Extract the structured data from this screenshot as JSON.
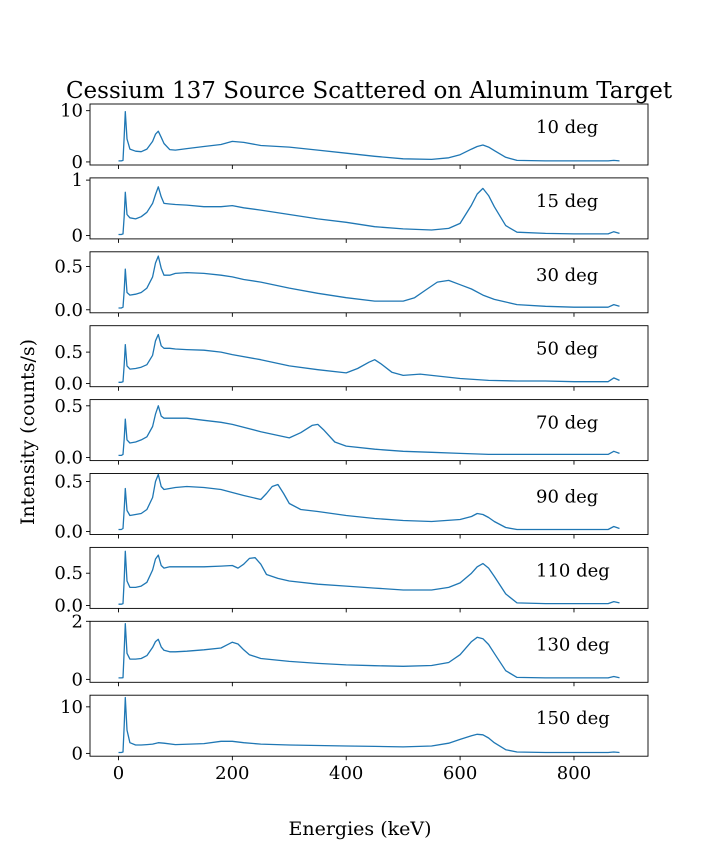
{
  "figure": {
    "title": "Cessium 137 Source Scattered on Aluminum Target",
    "xlabel": "Energies (keV)",
    "ylabel": "Intensity (counts/s)"
  },
  "colors": {
    "line": "#1f77b4",
    "axes": "#000000",
    "background": "#ffffff"
  },
  "chart_data": {
    "type": "line",
    "layout": "stacked-subplots-shared-x",
    "grid": false,
    "xlim": [
      -50,
      930
    ],
    "xticks": [
      0,
      200,
      400,
      600,
      800
    ],
    "xtick_labels": [
      "0",
      "200",
      "400",
      "600",
      "800"
    ],
    "panels": [
      {
        "label": "10 deg",
        "ylim": [
          -0.6,
          11.3
        ],
        "yticks": [
          0,
          10
        ],
        "ytick_labels": [
          "0",
          "10"
        ],
        "series": {
          "x": [
            0,
            5,
            8,
            10,
            12,
            15,
            20,
            30,
            40,
            50,
            60,
            65,
            70,
            75,
            80,
            90,
            100,
            120,
            150,
            180,
            200,
            220,
            250,
            300,
            350,
            400,
            450,
            500,
            550,
            580,
            600,
            620,
            630,
            640,
            650,
            660,
            680,
            700,
            750,
            800,
            860,
            870,
            880
          ],
          "y": [
            0.2,
            0.2,
            0.3,
            5,
            9.8,
            4.5,
            2.5,
            2.1,
            2.0,
            2.5,
            4.0,
            5.4,
            6.0,
            4.8,
            3.6,
            2.4,
            2.3,
            2.6,
            3.0,
            3.4,
            4.0,
            3.8,
            3.2,
            2.9,
            2.3,
            1.7,
            1.1,
            0.6,
            0.5,
            0.8,
            1.4,
            2.5,
            3.0,
            3.3,
            2.9,
            2.2,
            0.9,
            0.3,
            0.2,
            0.2,
            0.2,
            0.3,
            0.2
          ]
        }
      },
      {
        "label": "15 deg",
        "ylim": [
          -0.06,
          1.04
        ],
        "yticks": [
          0,
          1
        ],
        "ytick_labels": [
          "0",
          "1"
        ],
        "series": {
          "x": [
            0,
            5,
            8,
            10,
            12,
            15,
            20,
            30,
            40,
            50,
            60,
            65,
            70,
            75,
            80,
            90,
            100,
            120,
            150,
            180,
            200,
            220,
            250,
            300,
            350,
            400,
            450,
            500,
            550,
            580,
            600,
            620,
            630,
            640,
            650,
            660,
            680,
            700,
            750,
            800,
            860,
            870,
            880
          ],
          "y": [
            0.02,
            0.02,
            0.03,
            0.35,
            0.78,
            0.38,
            0.32,
            0.3,
            0.34,
            0.42,
            0.58,
            0.74,
            0.88,
            0.7,
            0.58,
            0.57,
            0.56,
            0.55,
            0.52,
            0.52,
            0.54,
            0.5,
            0.46,
            0.38,
            0.3,
            0.24,
            0.16,
            0.12,
            0.1,
            0.13,
            0.22,
            0.55,
            0.75,
            0.85,
            0.72,
            0.52,
            0.18,
            0.06,
            0.04,
            0.03,
            0.03,
            0.07,
            0.04
          ]
        }
      },
      {
        "label": "30 deg",
        "ylim": [
          -0.035,
          0.67
        ],
        "yticks": [
          0,
          0.5
        ],
        "ytick_labels": [
          "0.0",
          "0.5"
        ],
        "series": {
          "x": [
            0,
            5,
            8,
            10,
            12,
            15,
            20,
            30,
            40,
            50,
            60,
            65,
            70,
            75,
            80,
            90,
            100,
            120,
            150,
            180,
            200,
            220,
            250,
            300,
            350,
            400,
            450,
            500,
            520,
            540,
            560,
            580,
            600,
            620,
            640,
            660,
            680,
            700,
            750,
            800,
            860,
            870,
            880
          ],
          "y": [
            0.02,
            0.02,
            0.03,
            0.22,
            0.47,
            0.2,
            0.17,
            0.18,
            0.2,
            0.25,
            0.38,
            0.54,
            0.62,
            0.48,
            0.4,
            0.4,
            0.42,
            0.43,
            0.42,
            0.4,
            0.38,
            0.35,
            0.32,
            0.25,
            0.19,
            0.14,
            0.1,
            0.1,
            0.14,
            0.23,
            0.32,
            0.34,
            0.29,
            0.24,
            0.17,
            0.12,
            0.09,
            0.06,
            0.04,
            0.03,
            0.03,
            0.06,
            0.04
          ]
        }
      },
      {
        "label": "50 deg",
        "ylim": [
          -0.05,
          0.92
        ],
        "yticks": [
          0,
          0.5
        ],
        "ytick_labels": [
          "0.0",
          "0.5"
        ],
        "series": {
          "x": [
            0,
            5,
            8,
            10,
            12,
            15,
            20,
            30,
            40,
            50,
            60,
            65,
            70,
            75,
            80,
            90,
            100,
            120,
            150,
            180,
            200,
            250,
            300,
            350,
            400,
            420,
            440,
            450,
            460,
            480,
            500,
            530,
            560,
            600,
            650,
            700,
            750,
            800,
            860,
            870,
            880
          ],
          "y": [
            0.02,
            0.02,
            0.03,
            0.3,
            0.62,
            0.28,
            0.23,
            0.24,
            0.26,
            0.3,
            0.45,
            0.68,
            0.78,
            0.6,
            0.56,
            0.56,
            0.55,
            0.54,
            0.53,
            0.5,
            0.46,
            0.38,
            0.28,
            0.22,
            0.17,
            0.24,
            0.34,
            0.38,
            0.32,
            0.18,
            0.13,
            0.15,
            0.12,
            0.08,
            0.05,
            0.04,
            0.04,
            0.03,
            0.03,
            0.09,
            0.05
          ]
        }
      },
      {
        "label": "70 deg",
        "ylim": [
          -0.03,
          0.56
        ],
        "yticks": [
          0,
          0.5
        ],
        "ytick_labels": [
          "0.0",
          "0.5"
        ],
        "series": {
          "x": [
            0,
            5,
            8,
            10,
            12,
            15,
            20,
            30,
            40,
            50,
            60,
            65,
            70,
            75,
            80,
            90,
            100,
            120,
            150,
            180,
            200,
            250,
            300,
            320,
            340,
            350,
            360,
            380,
            400,
            450,
            500,
            550,
            600,
            650,
            700,
            750,
            800,
            860,
            870,
            880
          ],
          "y": [
            0.02,
            0.02,
            0.03,
            0.18,
            0.37,
            0.17,
            0.14,
            0.15,
            0.17,
            0.2,
            0.3,
            0.42,
            0.5,
            0.4,
            0.38,
            0.38,
            0.38,
            0.38,
            0.36,
            0.34,
            0.32,
            0.25,
            0.19,
            0.24,
            0.31,
            0.32,
            0.27,
            0.15,
            0.11,
            0.08,
            0.06,
            0.05,
            0.04,
            0.03,
            0.03,
            0.03,
            0.03,
            0.03,
            0.06,
            0.04
          ]
        }
      },
      {
        "label": "90 deg",
        "ylim": [
          -0.03,
          0.58
        ],
        "yticks": [
          0,
          0.5
        ],
        "ytick_labels": [
          "0.0",
          "0.5"
        ],
        "series": {
          "x": [
            0,
            5,
            8,
            10,
            12,
            15,
            20,
            30,
            40,
            50,
            60,
            65,
            70,
            75,
            80,
            90,
            100,
            120,
            150,
            180,
            200,
            220,
            250,
            260,
            270,
            280,
            290,
            300,
            320,
            350,
            400,
            450,
            500,
            550,
            600,
            620,
            630,
            640,
            650,
            660,
            680,
            700,
            750,
            800,
            860,
            870,
            880
          ],
          "y": [
            0.02,
            0.02,
            0.03,
            0.22,
            0.43,
            0.21,
            0.16,
            0.17,
            0.18,
            0.22,
            0.34,
            0.5,
            0.57,
            0.45,
            0.42,
            0.43,
            0.44,
            0.45,
            0.44,
            0.42,
            0.39,
            0.36,
            0.32,
            0.38,
            0.45,
            0.47,
            0.38,
            0.28,
            0.22,
            0.2,
            0.16,
            0.13,
            0.11,
            0.1,
            0.12,
            0.15,
            0.18,
            0.17,
            0.14,
            0.1,
            0.04,
            0.02,
            0.02,
            0.02,
            0.02,
            0.05,
            0.03
          ]
        }
      },
      {
        "label": "110 deg",
        "ylim": [
          -0.045,
          0.9
        ],
        "yticks": [
          0,
          0.5
        ],
        "ytick_labels": [
          "0.0",
          "0.5"
        ],
        "series": {
          "x": [
            0,
            5,
            8,
            10,
            12,
            15,
            20,
            30,
            40,
            50,
            60,
            65,
            70,
            75,
            80,
            90,
            100,
            120,
            150,
            180,
            200,
            210,
            220,
            230,
            240,
            250,
            260,
            280,
            300,
            350,
            400,
            450,
            500,
            550,
            580,
            600,
            620,
            630,
            640,
            650,
            660,
            680,
            700,
            750,
            800,
            860,
            870,
            880
          ],
          "y": [
            0.02,
            0.02,
            0.03,
            0.4,
            0.84,
            0.38,
            0.28,
            0.28,
            0.3,
            0.36,
            0.55,
            0.72,
            0.78,
            0.62,
            0.58,
            0.6,
            0.6,
            0.6,
            0.6,
            0.61,
            0.62,
            0.58,
            0.64,
            0.73,
            0.74,
            0.64,
            0.48,
            0.42,
            0.38,
            0.33,
            0.3,
            0.27,
            0.24,
            0.24,
            0.28,
            0.35,
            0.5,
            0.6,
            0.65,
            0.58,
            0.45,
            0.18,
            0.04,
            0.03,
            0.03,
            0.03,
            0.06,
            0.04
          ]
        }
      },
      {
        "label": "130 deg",
        "ylim": [
          -0.1,
          2.0
        ],
        "yticks": [
          0,
          2
        ],
        "ytick_labels": [
          "0",
          "2"
        ],
        "series": {
          "x": [
            0,
            5,
            8,
            10,
            12,
            15,
            20,
            30,
            40,
            50,
            60,
            65,
            70,
            75,
            80,
            90,
            100,
            120,
            150,
            180,
            190,
            200,
            210,
            220,
            230,
            250,
            300,
            350,
            400,
            450,
            500,
            550,
            580,
            600,
            620,
            630,
            640,
            650,
            660,
            680,
            700,
            750,
            800,
            860,
            870,
            880
          ],
          "y": [
            0.05,
            0.05,
            0.06,
            1.0,
            1.92,
            0.9,
            0.7,
            0.7,
            0.72,
            0.82,
            1.1,
            1.3,
            1.38,
            1.12,
            1.0,
            0.95,
            0.95,
            0.97,
            1.02,
            1.08,
            1.18,
            1.28,
            1.22,
            1.02,
            0.85,
            0.72,
            0.62,
            0.55,
            0.5,
            0.47,
            0.45,
            0.48,
            0.58,
            0.85,
            1.3,
            1.45,
            1.4,
            1.2,
            0.9,
            0.3,
            0.07,
            0.05,
            0.05,
            0.05,
            0.1,
            0.06
          ]
        }
      },
      {
        "label": "150 deg",
        "ylim": [
          -0.6,
          12.5
        ],
        "yticks": [
          0,
          10
        ],
        "ytick_labels": [
          "0",
          "10"
        ],
        "series": {
          "x": [
            0,
            5,
            8,
            10,
            12,
            15,
            20,
            30,
            40,
            50,
            60,
            70,
            80,
            100,
            150,
            180,
            200,
            220,
            250,
            300,
            350,
            400,
            450,
            500,
            550,
            580,
            600,
            620,
            630,
            640,
            650,
            660,
            680,
            700,
            750,
            800,
            860,
            870,
            880
          ],
          "y": [
            0.2,
            0.2,
            0.3,
            6,
            12,
            5,
            2.3,
            1.8,
            1.8,
            1.9,
            2.0,
            2.3,
            2.2,
            1.9,
            2.1,
            2.6,
            2.6,
            2.3,
            2.0,
            1.8,
            1.7,
            1.6,
            1.5,
            1.4,
            1.6,
            2.2,
            3.0,
            3.8,
            4.1,
            4.0,
            3.3,
            2.3,
            0.8,
            0.3,
            0.2,
            0.2,
            0.2,
            0.3,
            0.2
          ]
        }
      }
    ]
  }
}
